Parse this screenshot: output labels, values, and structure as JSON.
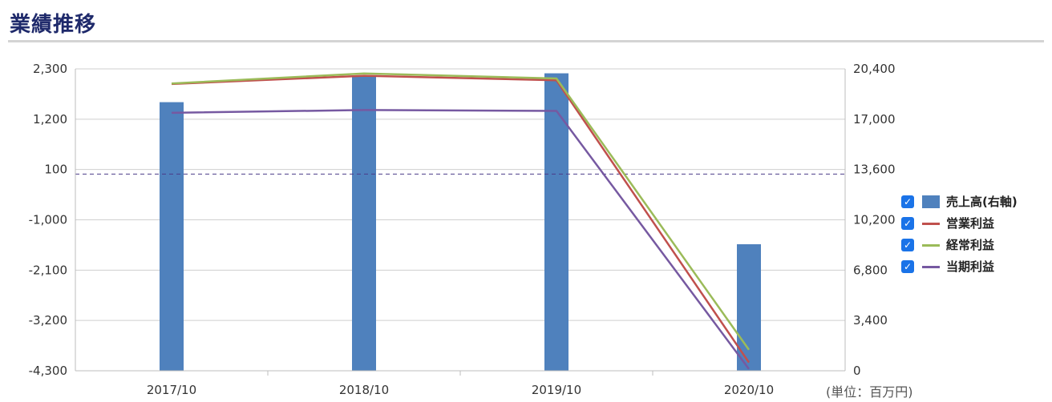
{
  "page": {
    "title": "業績推移",
    "unit_label": "(単位：百万円)"
  },
  "chart_data": {
    "type": "bar",
    "categories": [
      "2017/10",
      "2018/10",
      "2019/10",
      "2020/10"
    ],
    "y_left": {
      "ticks": [
        "2,300",
        "1,200",
        "100",
        "-1,000",
        "-2,100",
        "-3,200",
        "-4,300"
      ],
      "tick_values": [
        2300,
        1200,
        100,
        -1000,
        -2100,
        -3200,
        -4300
      ],
      "ylim": [
        -4300,
        2300
      ]
    },
    "y_right": {
      "ticks": [
        "20,400",
        "17,000",
        "13,600",
        "10,200",
        "6,800",
        "3,400",
        "0"
      ],
      "tick_values": [
        20400,
        17000,
        13600,
        10200,
        6800,
        3400,
        0
      ],
      "ylim": [
        0,
        20400
      ]
    },
    "zero_line": {
      "axis": "left",
      "value": 0,
      "style": "dashed",
      "color": "#4b3b8a"
    },
    "grid": true,
    "legend_position": "right",
    "series": [
      {
        "name": "売上高(右軸)",
        "type": "bar",
        "axis": "right",
        "color": "#4f81bd",
        "values": [
          18150,
          19890,
          20100,
          8550
        ]
      },
      {
        "name": "営業利益",
        "type": "line",
        "axis": "left",
        "color": "#c0504d",
        "values": [
          1970,
          2150,
          2050,
          -4120
        ]
      },
      {
        "name": "経常利益",
        "type": "line",
        "axis": "left",
        "color": "#9bbb59",
        "values": [
          1980,
          2200,
          2090,
          -3840
        ]
      },
      {
        "name": "当期利益",
        "type": "line",
        "axis": "left",
        "color": "#7659a1",
        "values": [
          1340,
          1400,
          1380,
          -4260
        ]
      }
    ]
  }
}
